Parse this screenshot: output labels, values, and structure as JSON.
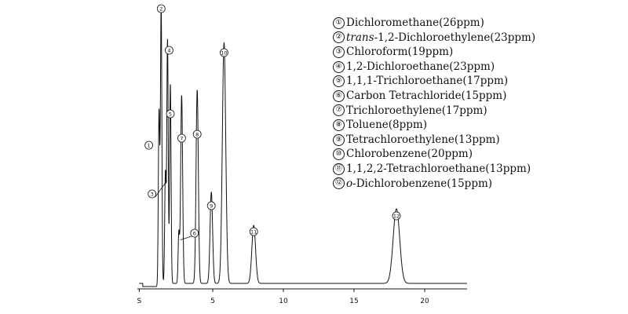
{
  "chart_data": {
    "type": "line",
    "title": "",
    "xlabel": "",
    "ylabel": "",
    "xlim": [
      0,
      23
    ],
    "x_ticks": [
      "S",
      "5",
      "10",
      "15",
      "20"
    ],
    "grid": false,
    "legend_position": "top-right",
    "line_color": "#111111",
    "peaks": [
      {
        "id": 1,
        "label": "①",
        "rt": 1.2,
        "height": 0.62,
        "width": 0.05
      },
      {
        "id": 2,
        "label": "②",
        "rt": 1.35,
        "height": 1.0,
        "width": 0.05
      },
      {
        "id": 3,
        "label": "③",
        "rt": 1.65,
        "height": 0.4,
        "width": 0.05
      },
      {
        "id": 4,
        "label": "④",
        "rt": 1.8,
        "height": 0.88,
        "width": 0.05
      },
      {
        "id": 5,
        "label": "⑤",
        "rt": 2.0,
        "height": 0.72,
        "width": 0.05
      },
      {
        "id": 6,
        "label": "⑥",
        "rt": 2.6,
        "height": 0.18,
        "width": 0.05
      },
      {
        "id": 7,
        "label": "⑦",
        "rt": 2.8,
        "height": 0.68,
        "width": 0.07
      },
      {
        "id": 8,
        "label": "⑧",
        "rt": 3.9,
        "height": 0.7,
        "width": 0.08
      },
      {
        "id": 9,
        "label": "⑨",
        "rt": 4.9,
        "height": 0.33,
        "width": 0.09
      },
      {
        "id": 10,
        "label": "⑩",
        "rt": 5.8,
        "height": 0.87,
        "width": 0.12
      },
      {
        "id": 11,
        "label": "⑪",
        "rt": 7.9,
        "height": 0.21,
        "width": 0.13
      },
      {
        "id": 12,
        "label": "⑫",
        "rt": 18.0,
        "height": 0.27,
        "width": 0.23
      }
    ]
  },
  "legend": {
    "items": [
      {
        "num": "①",
        "text": "Dichloromethane(26ppm)"
      },
      {
        "num": "②",
        "prefix": "trans",
        "text": "-1,2-Dichloroethylene(23ppm)"
      },
      {
        "num": "③",
        "text": "Chloroform(19ppm)"
      },
      {
        "num": "④",
        "text": "1,2-Dichloroethane(23ppm)"
      },
      {
        "num": "⑤",
        "text": "1,1,1-Trichloroethane(17ppm)"
      },
      {
        "num": "⑥",
        "text": "Carbon Tetrachloride(15ppm)"
      },
      {
        "num": "⑦",
        "text": "Trichloroethylene(17ppm)"
      },
      {
        "num": "⑧",
        "text": "Toluene(8ppm)"
      },
      {
        "num": "⑨",
        "text": "Tetrachloroethylene(13ppm)"
      },
      {
        "num": "⑩",
        "text": "Chlorobenzene(20ppm)"
      },
      {
        "num": "⑪",
        "text": "1,1,2,2-Tetrachloroethane(13ppm)"
      },
      {
        "num": "⑫",
        "prefix": "o",
        "text": "-Dichlorobenzene(15ppm)"
      }
    ]
  }
}
